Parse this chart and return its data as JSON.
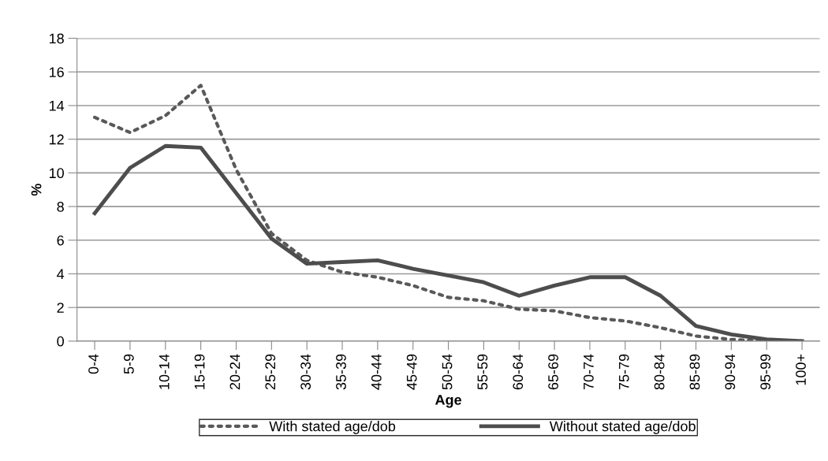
{
  "chart_data": {
    "type": "line",
    "xlabel": "Age",
    "ylabel": "%",
    "categories": [
      "0-4",
      "5-9",
      "10-14",
      "15-19",
      "20-24",
      "25-29",
      "30-34",
      "35-39",
      "40-44",
      "45-49",
      "50-54",
      "55-59",
      "60-64",
      "65-69",
      "70-74",
      "75-79",
      "80-84",
      "85-89",
      "90-94",
      "95-99",
      "100+"
    ],
    "series": [
      {
        "name": "With stated age/dob",
        "color": "#595959",
        "line_style": "dotted",
        "values": [
          13.3,
          12.4,
          13.4,
          15.2,
          10.2,
          6.4,
          4.8,
          4.1,
          3.8,
          3.3,
          2.6,
          2.4,
          1.9,
          1.8,
          1.4,
          1.2,
          0.8,
          0.3,
          0.1,
          0.0,
          0.0
        ]
      },
      {
        "name": "Without stated age/dob",
        "color": "#4d4d4d",
        "line_style": "solid",
        "values": [
          7.6,
          10.3,
          11.6,
          11.5,
          8.8,
          6.1,
          4.6,
          4.7,
          4.8,
          4.3,
          3.9,
          3.5,
          2.7,
          3.3,
          3.8,
          3.8,
          2.7,
          0.9,
          0.4,
          0.1,
          0.0
        ]
      }
    ],
    "ylim": [
      0,
      18
    ],
    "yticks": [
      0,
      2,
      4,
      6,
      8,
      10,
      12,
      14,
      16,
      18
    ],
    "grid": "y",
    "legend": "bottom",
    "marker": "none"
  }
}
